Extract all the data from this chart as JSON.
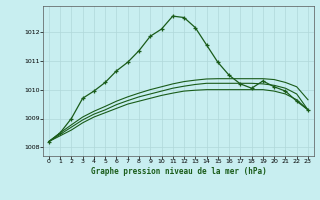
{
  "title": "Graphe pression niveau de la mer (hPa)",
  "bg_color": "#c8eef0",
  "grid_color": "#b0d8da",
  "line_color": "#1a5c1a",
  "xlim": [
    -0.5,
    23.5
  ],
  "ylim": [
    1007.7,
    1012.9
  ],
  "yticks": [
    1008,
    1009,
    1010,
    1011,
    1012
  ],
  "xticks": [
    0,
    1,
    2,
    3,
    4,
    5,
    6,
    7,
    8,
    9,
    10,
    11,
    12,
    13,
    14,
    15,
    16,
    17,
    18,
    19,
    20,
    21,
    22,
    23
  ],
  "series_main": [
    1008.2,
    1008.5,
    1009.0,
    1009.7,
    1009.95,
    1010.25,
    1010.65,
    1010.95,
    1011.35,
    1011.85,
    1012.1,
    1012.55,
    1012.5,
    1012.15,
    1011.55,
    1010.95,
    1010.5,
    1010.2,
    1010.05,
    1010.3,
    1010.1,
    1009.95,
    1009.6,
    1009.3
  ],
  "series_smooth1": [
    1008.2,
    1008.4,
    1008.6,
    1008.85,
    1009.05,
    1009.2,
    1009.35,
    1009.5,
    1009.6,
    1009.7,
    1009.8,
    1009.88,
    1009.95,
    1009.98,
    1010.0,
    1010.0,
    1010.0,
    1010.0,
    1010.0,
    1010.0,
    1009.95,
    1009.85,
    1009.65,
    1009.3
  ],
  "series_smooth2": [
    1008.2,
    1008.45,
    1008.7,
    1008.95,
    1009.15,
    1009.3,
    1009.48,
    1009.62,
    1009.75,
    1009.85,
    1009.95,
    1010.05,
    1010.12,
    1010.18,
    1010.22,
    1010.22,
    1010.22,
    1010.22,
    1010.22,
    1010.2,
    1010.15,
    1010.05,
    1009.85,
    1009.3
  ],
  "series_smooth3": [
    1008.2,
    1008.5,
    1008.78,
    1009.05,
    1009.25,
    1009.42,
    1009.6,
    1009.75,
    1009.88,
    1010.0,
    1010.1,
    1010.2,
    1010.28,
    1010.33,
    1010.37,
    1010.38,
    1010.38,
    1010.38,
    1010.38,
    1010.38,
    1010.35,
    1010.25,
    1010.1,
    1009.65
  ]
}
